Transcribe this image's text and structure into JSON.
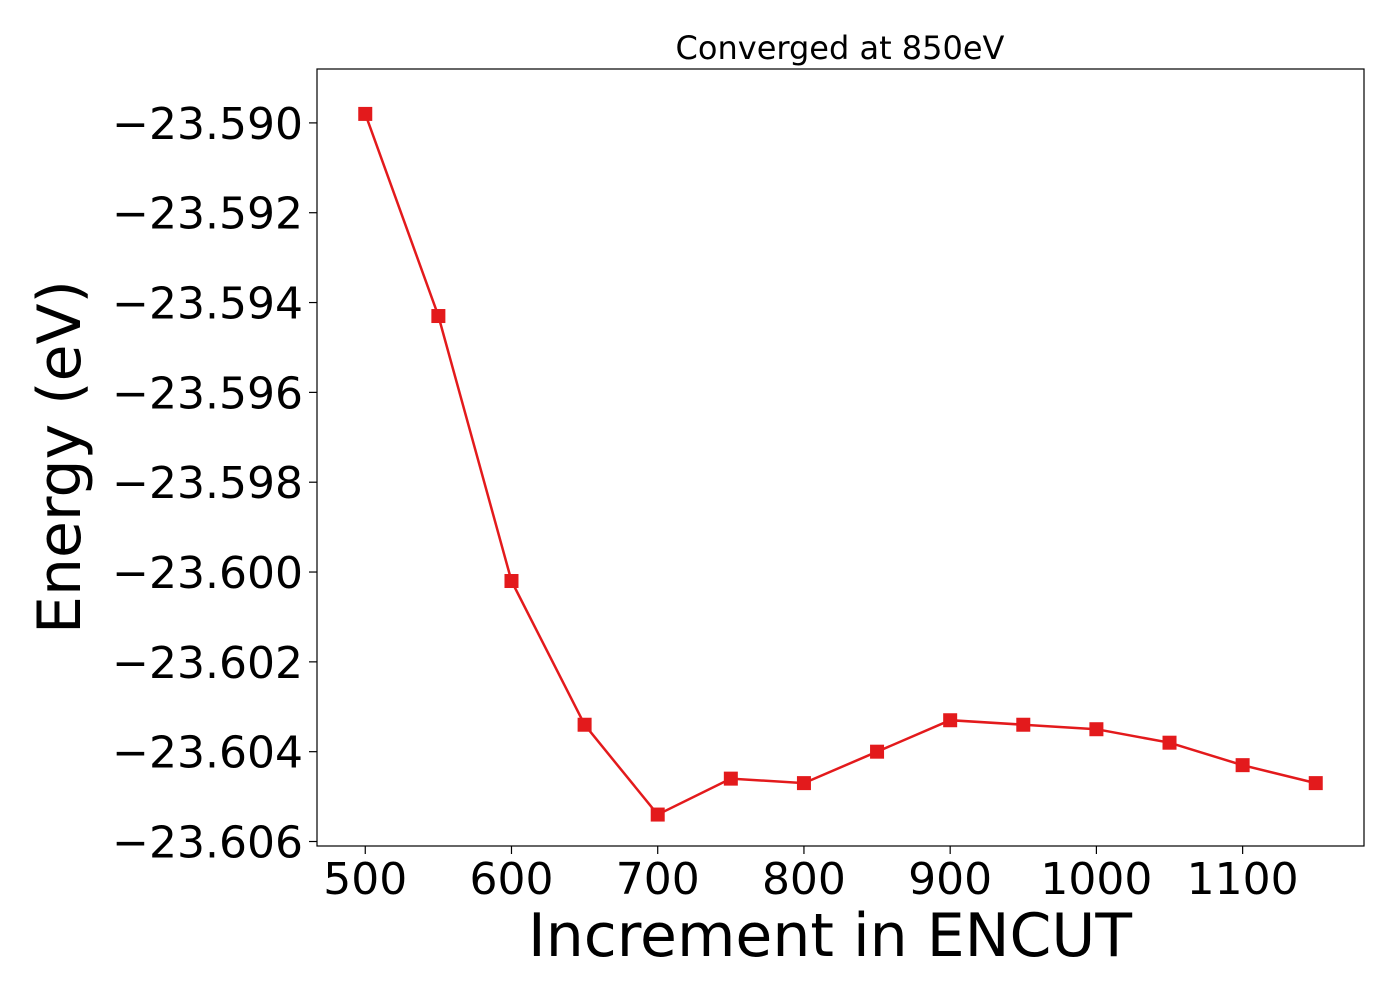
{
  "chart_data": {
    "type": "line",
    "title": "Converged at 850eV",
    "xlabel": "Increment in ENCUT",
    "ylabel": "Energy (eV)",
    "xlim": [
      467,
      1183
    ],
    "ylim": [
      -23.6061,
      -23.5888
    ],
    "x_ticks": [
      500,
      600,
      700,
      800,
      900,
      1000,
      1100
    ],
    "x_tick_labels": [
      "500",
      "600",
      "700",
      "800",
      "900",
      "1000",
      "1100"
    ],
    "y_ticks": [
      -23.59,
      -23.592,
      -23.594,
      -23.596,
      -23.598,
      -23.6,
      -23.602,
      -23.604,
      -23.606
    ],
    "y_tick_labels": [
      "−23.590",
      "−23.592",
      "−23.594",
      "−23.596",
      "−23.598",
      "−23.600",
      "−23.602",
      "−23.604",
      "−23.606"
    ],
    "grid": false,
    "color": "#e31a1c",
    "marker": "square",
    "x": [
      500,
      550,
      600,
      650,
      700,
      750,
      800,
      850,
      900,
      950,
      1000,
      1050,
      1100,
      1150
    ],
    "y": [
      -23.5898,
      -23.5943,
      -23.6002,
      -23.6034,
      -23.6054,
      -23.6046,
      -23.6047,
      -23.604,
      -23.6033,
      -23.6034,
      -23.6035,
      -23.6038,
      -23.6043,
      -23.6047
    ]
  }
}
